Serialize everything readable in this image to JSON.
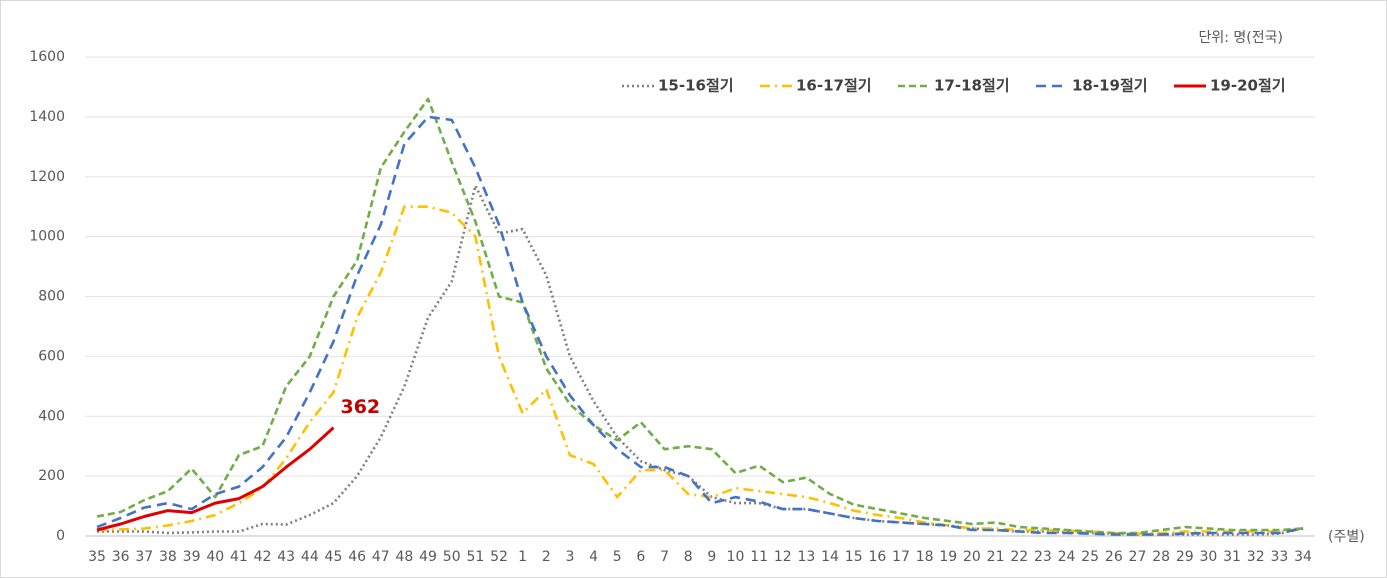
{
  "chart_data": {
    "type": "line",
    "unit_label": "단위: 명(전국)",
    "x_unit_label": "(주별)",
    "categories": [
      "35",
      "36",
      "37",
      "38",
      "39",
      "40",
      "41",
      "42",
      "43",
      "44",
      "45",
      "46",
      "47",
      "48",
      "49",
      "50",
      "51",
      "52",
      "1",
      "2",
      "3",
      "4",
      "5",
      "6",
      "7",
      "8",
      "9",
      "10",
      "11",
      "12",
      "13",
      "14",
      "15",
      "16",
      "17",
      "18",
      "19",
      "20",
      "21",
      "22",
      "23",
      "24",
      "25",
      "26",
      "27",
      "28",
      "29",
      "30",
      "31",
      "32",
      "33",
      "34"
    ],
    "ylim": [
      0,
      1600
    ],
    "yticks": [
      0,
      200,
      400,
      600,
      800,
      1000,
      1200,
      1400,
      1600
    ],
    "grid": true,
    "legend": "top-right",
    "series": [
      {
        "name": "15-16절기",
        "color": "#7f7f7f",
        "dash": "dotted",
        "values": [
          15,
          15,
          15,
          10,
          12,
          15,
          15,
          40,
          38,
          70,
          110,
          200,
          330,
          500,
          730,
          850,
          1170,
          1010,
          1025,
          870,
          600,
          450,
          330,
          250,
          220,
          200,
          130,
          110,
          110,
          90,
          90,
          75,
          60,
          50,
          45,
          40,
          35,
          25,
          20,
          15,
          15,
          12,
          10,
          8,
          5,
          5,
          5,
          5,
          5,
          5,
          8,
          25
        ]
      },
      {
        "name": "16-17절기",
        "color": "#ffc000",
        "dash": "dashdot",
        "values": [
          20,
          22,
          25,
          35,
          50,
          70,
          110,
          160,
          260,
          380,
          480,
          730,
          880,
          1100,
          1100,
          1080,
          1000,
          600,
          410,
          490,
          270,
          240,
          130,
          220,
          220,
          140,
          130,
          160,
          150,
          140,
          130,
          110,
          85,
          70,
          60,
          45,
          35,
          25,
          25,
          20,
          20,
          18,
          15,
          10,
          8,
          10,
          15,
          15,
          15,
          15,
          15,
          25
        ]
      },
      {
        "name": "17-18절기",
        "color": "#70ad47",
        "dash": "dashed",
        "values": [
          65,
          80,
          120,
          150,
          225,
          130,
          270,
          300,
          500,
          600,
          800,
          920,
          1230,
          1350,
          1460,
          1250,
          1050,
          800,
          780,
          560,
          440,
          370,
          320,
          380,
          290,
          300,
          290,
          210,
          235,
          180,
          195,
          140,
          105,
          90,
          75,
          60,
          50,
          40,
          45,
          30,
          25,
          20,
          15,
          10,
          10,
          20,
          30,
          25,
          20,
          20,
          20,
          25
        ]
      },
      {
        "name": "18-19절기",
        "color": "#4472c4",
        "dash": "longdash",
        "values": [
          30,
          60,
          95,
          110,
          90,
          140,
          165,
          230,
          330,
          480,
          650,
          870,
          1040,
          1310,
          1400,
          1390,
          1230,
          1040,
          780,
          600,
          470,
          370,
          290,
          230,
          230,
          200,
          110,
          130,
          115,
          90,
          90,
          75,
          60,
          50,
          45,
          40,
          35,
          20,
          20,
          15,
          10,
          10,
          8,
          5,
          5,
          5,
          8,
          10,
          10,
          10,
          10,
          25
        ]
      },
      {
        "name": "19-20절기",
        "color": "#e00000",
        "dash": "solid",
        "label_index": 10,
        "label_color": "#c00000",
        "values": [
          20,
          40,
          65,
          85,
          78,
          110,
          125,
          165,
          230,
          290,
          362,
          null,
          null,
          null,
          null,
          null,
          null,
          null,
          null,
          null,
          null,
          null,
          null,
          null,
          null,
          null,
          null,
          null,
          null,
          null,
          null,
          null,
          null,
          null,
          null,
          null,
          null,
          null,
          null,
          null,
          null,
          null,
          null,
          null,
          null,
          null,
          null,
          null,
          null,
          null,
          null,
          null
        ]
      }
    ]
  }
}
